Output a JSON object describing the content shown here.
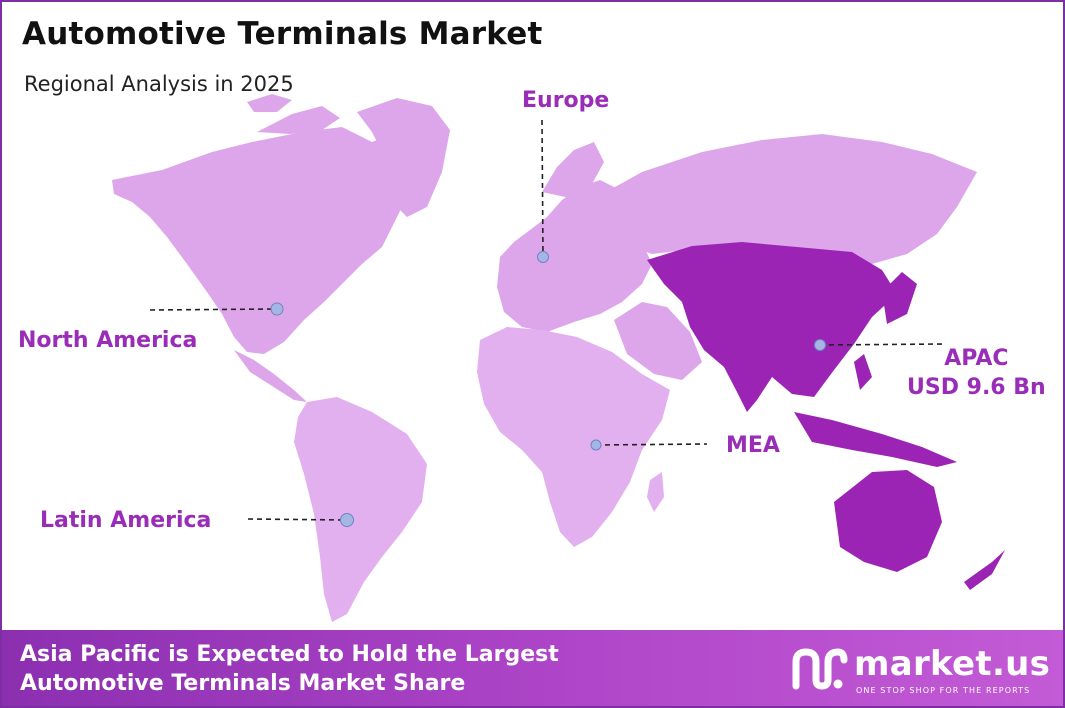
{
  "title": "Automotive Terminals Market",
  "subtitle": "Regional Analysis in 2025",
  "regions": {
    "north_america": "North America",
    "europe": "Europe",
    "latin_america": "Latin America",
    "mea": "MEA",
    "apac": "APAC",
    "apac_value": "USD 9.6 Bn"
  },
  "highlighted_region": "APAC",
  "colors": {
    "land": "#dda6ea",
    "land_light": "#e5b6ef",
    "highlight": "#9b24b4",
    "label": "#9a2db8",
    "marker": "#a5b6e6",
    "frame": "#7b2fa3"
  },
  "banner": {
    "line1": "Asia Pacific is Expected to Hold the Largest",
    "line2": "Automotive Terminals Market Share"
  },
  "brand": {
    "logo_icon": "market-us-logo",
    "name": "market.us",
    "tagline": "ONE STOP SHOP FOR THE REPORTS"
  }
}
